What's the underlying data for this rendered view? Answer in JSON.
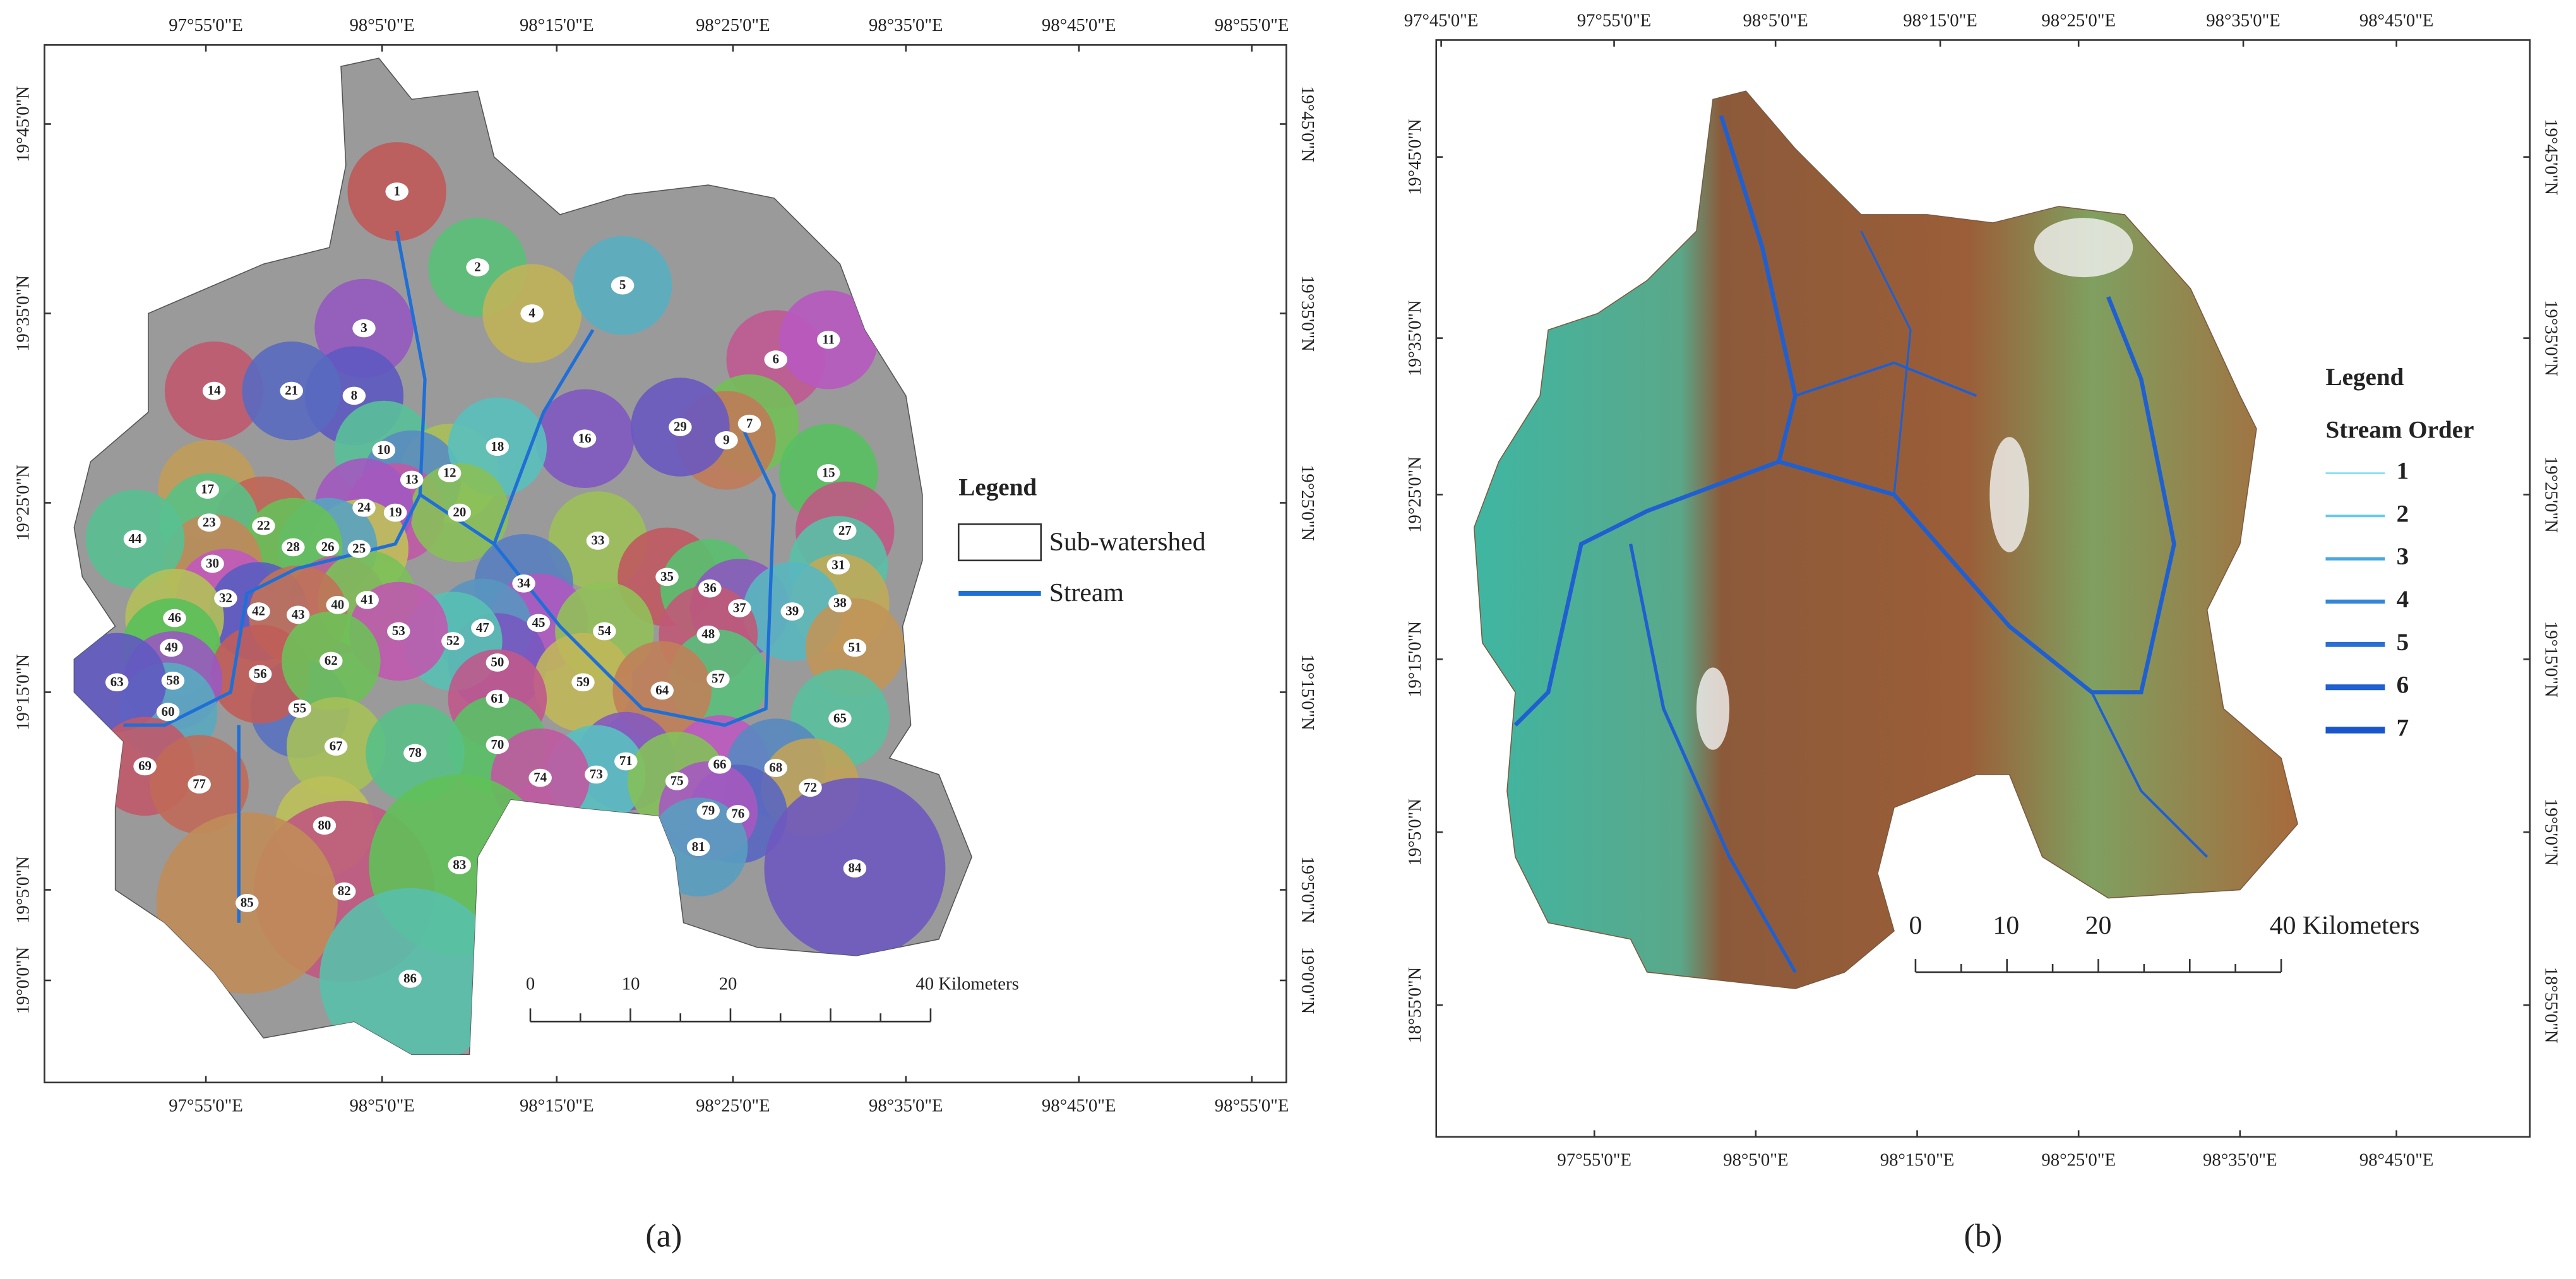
{
  "panel_a": {
    "caption": "(a)",
    "top_labels": [
      "97°55'0\"E",
      "98°5'0\"E",
      "98°15'0\"E",
      "98°25'0\"E",
      "98°35'0\"E",
      "98°45'0\"E",
      "98°55'0\"E"
    ],
    "bottom_labels": [
      "97°55'0\"E",
      "98°5'0\"E",
      "98°15'0\"E",
      "98°25'0\"E",
      "98°35'0\"E",
      "98°45'0\"E",
      "98°55'0\"E"
    ],
    "left_labels": [
      "19°45'0\"N",
      "19°35'0\"N",
      "19°25'0\"N",
      "19°15'0\"N",
      "19°5'0\"N",
      "19°0'0\"N"
    ],
    "right_labels": [
      "19°45'0\"N",
      "19°35'0\"N",
      "19°25'0\"N",
      "19°15'0\"N",
      "19°5'0\"N",
      "19°0'0\"N"
    ],
    "subwatershed_labels": [
      "1",
      "2",
      "3",
      "4",
      "5",
      "6",
      "7",
      "8",
      "9",
      "10",
      "11",
      "12",
      "13",
      "14",
      "15",
      "16",
      "17",
      "18",
      "19",
      "20",
      "21",
      "22",
      "23",
      "24",
      "25",
      "26",
      "27",
      "28",
      "29",
      "30",
      "31",
      "32",
      "33",
      "34",
      "35",
      "36",
      "37",
      "38",
      "39",
      "40",
      "41",
      "42",
      "43",
      "44",
      "45",
      "46",
      "47",
      "48",
      "49",
      "50",
      "51",
      "52",
      "53",
      "54",
      "55",
      "56",
      "57",
      "58",
      "59",
      "60",
      "61",
      "62",
      "63",
      "64",
      "65",
      "66",
      "67",
      "68",
      "69",
      "70",
      "71",
      "72",
      "73",
      "74",
      "75",
      "76",
      "77",
      "78",
      "79",
      "80",
      "81",
      "82",
      "83",
      "84",
      "85",
      "86"
    ],
    "legend": {
      "title": "Legend",
      "items": [
        "Sub-watershed",
        "Stream"
      ]
    },
    "scale_bar": {
      "labels": [
        "0",
        "10",
        "20",
        "40 Kilometers"
      ]
    }
  },
  "panel_b": {
    "caption": "(b)",
    "top_labels": [
      "97°45'0\"E",
      "97°55'0\"E",
      "98°5'0\"E",
      "98°15'0\"E",
      "98°25'0\"E",
      "98°35'0\"E",
      "98°45'0\"E"
    ],
    "bottom_labels": [
      "97°55'0\"E",
      "98°5'0\"E",
      "98°15'0\"E",
      "98°25'0\"E",
      "98°35'0\"E",
      "98°45'0\"E"
    ],
    "left_labels": [
      "19°45'0\"N",
      "19°35'0\"N",
      "19°25'0\"N",
      "19°15'0\"N",
      "19°5'0\"N",
      "18°55'0\"N"
    ],
    "right_labels": [
      "19°45'0\"N",
      "19°35'0\"N",
      "19°25'0\"N",
      "19°15'0\"N",
      "19°5'0\"N",
      "18°55'0\"N"
    ],
    "legend": {
      "title": "Legend",
      "subtitle": "Stream Order",
      "items": [
        "1",
        "2",
        "3",
        "4",
        "5",
        "6",
        "7"
      ]
    },
    "scale_bar": {
      "labels": [
        "0",
        "10",
        "20",
        "40 Kilometers"
      ]
    }
  }
}
